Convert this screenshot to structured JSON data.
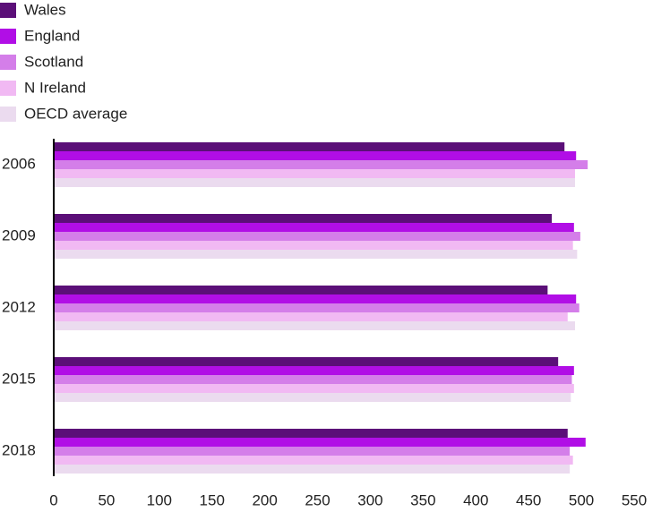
{
  "chart_data": {
    "type": "hbar",
    "categories": [
      "2006",
      "2009",
      "2012",
      "2015",
      "2018"
    ],
    "series": [
      {
        "name": "Wales",
        "color": "#5b0f78",
        "values": [
          484,
          472,
          468,
          478,
          487
        ]
      },
      {
        "name": "England",
        "color": "#b10ee6",
        "values": [
          495,
          493,
          495,
          493,
          504
        ]
      },
      {
        "name": "Scotland",
        "color": "#d47ee9",
        "values": [
          506,
          499,
          498,
          491,
          489
        ]
      },
      {
        "name": "N Ireland",
        "color": "#f1b9f3",
        "values": [
          494,
          492,
          487,
          493,
          492
        ]
      },
      {
        "name": "OECD average",
        "color": "#ebdbef",
        "values": [
          494,
          496,
          494,
          490,
          489
        ]
      }
    ],
    "xlim": [
      0,
      550
    ],
    "xticks": [
      0,
      50,
      100,
      150,
      200,
      250,
      300,
      350,
      400,
      450,
      500,
      550
    ]
  }
}
